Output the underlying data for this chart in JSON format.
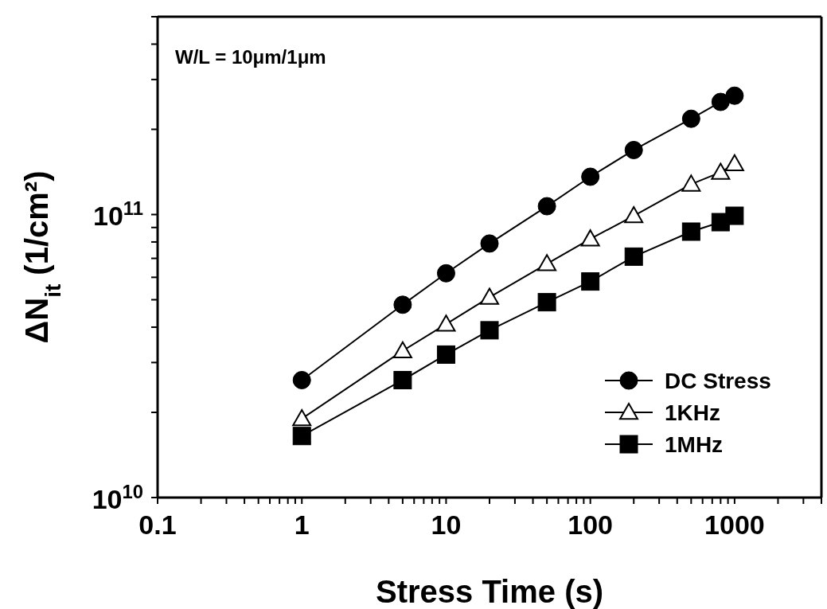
{
  "chart_data": {
    "type": "line",
    "xlabel": "Stress Time (s)",
    "ylabel": "ΔN$_{it}$ (1/cm²)",
    "log": "xy",
    "grid": false,
    "legend": "bottom right",
    "line_style": "solid",
    "annotations": [
      "W/L = 10μm/1μm"
    ],
    "xlim": [
      0.1,
      4000
    ],
    "ylim": [
      10000000000.0,
      500000000000.0
    ],
    "xticks": [
      0.1,
      {
        "value": 0.2,
        "label": null
      },
      {
        "value": 0.3,
        "label": null
      },
      {
        "value": 0.4,
        "label": null
      },
      {
        "value": 0.5,
        "label": null
      },
      {
        "value": 0.6,
        "label": null
      },
      {
        "value": 0.7,
        "label": null
      },
      {
        "value": 0.8,
        "label": null
      },
      {
        "value": 0.9,
        "label": null
      },
      1,
      {
        "value": 2,
        "label": null
      },
      {
        "value": 3,
        "label": null
      },
      {
        "value": 4,
        "label": null
      },
      {
        "value": 5,
        "label": null
      },
      {
        "value": 6,
        "label": null
      },
      {
        "value": 7,
        "label": null
      },
      {
        "value": 8,
        "label": null
      },
      {
        "value": 9,
        "label": null
      },
      10,
      {
        "value": 20,
        "label": null
      },
      {
        "value": 30,
        "label": null
      },
      {
        "value": 40,
        "label": null
      },
      {
        "value": 50,
        "label": null
      },
      {
        "value": 60,
        "label": null
      },
      {
        "value": 70,
        "label": null
      },
      {
        "value": 80,
        "label": null
      },
      {
        "value": 90,
        "label": null
      },
      100,
      {
        "value": 200,
        "label": null
      },
      {
        "value": 300,
        "label": null
      },
      {
        "value": 400,
        "label": null
      },
      {
        "value": 500,
        "label": null
      },
      {
        "value": 600,
        "label": null
      },
      {
        "value": 700,
        "label": null
      },
      {
        "value": 800,
        "label": null
      },
      {
        "value": 900,
        "label": null
      },
      1000,
      {
        "value": 2000,
        "label": null
      },
      {
        "value": 3000,
        "label": null
      },
      {
        "value": 4000,
        "label": null
      }
    ],
    "yticks": [
      {
        "value": 10000000000.0,
        "label": "10$^{10}$"
      },
      {
        "value": 20000000000.0,
        "label": null
      },
      {
        "value": 30000000000.0,
        "label": null
      },
      {
        "value": 40000000000.0,
        "label": null
      },
      {
        "value": 50000000000.0,
        "label": null
      },
      {
        "value": 60000000000.0,
        "label": null
      },
      {
        "value": 70000000000.0,
        "label": null
      },
      {
        "value": 80000000000.0,
        "label": null
      },
      {
        "value": 90000000000.0,
        "label": null
      },
      {
        "value": 100000000000.0,
        "label": "10$^{11}$"
      },
      {
        "value": 200000000000.0,
        "label": null
      },
      {
        "value": 300000000000.0,
        "label": null
      },
      {
        "value": 400000000000.0,
        "label": null
      },
      {
        "value": 500000000000.0,
        "label": null
      }
    ],
    "x": [
      1,
      5,
      10,
      20,
      50,
      100,
      200,
      500,
      800,
      1000
    ],
    "series": [
      {
        "name": "DC Stress",
        "color": "#000000",
        "marker": "circle",
        "values": [
          26000000000.0,
          48000000000.0,
          62000000000.0,
          79000000000.0,
          107000000000.0,
          136000000000.0,
          169000000000.0,
          218000000000.0,
          250000000000.0,
          263000000000.0
        ]
      },
      {
        "name": "1KHz",
        "color": "#000000",
        "marker": "triangle",
        "values": [
          19000000000.0,
          33000000000.0,
          41000000000.0,
          51000000000.0,
          67000000000.0,
          82000000000.0,
          99000000000.0,
          128000000000.0,
          141000000000.0,
          151000000000.0
        ]
      },
      {
        "name": "1MHz",
        "color": "#000000",
        "marker": "square",
        "values": [
          16500000000.0,
          26000000000.0,
          32000000000.0,
          39000000000.0,
          49000000000.0,
          58000000000.0,
          71000000000.0,
          87000000000.0,
          94000000000.0,
          99000000000.0
        ]
      }
    ]
  }
}
